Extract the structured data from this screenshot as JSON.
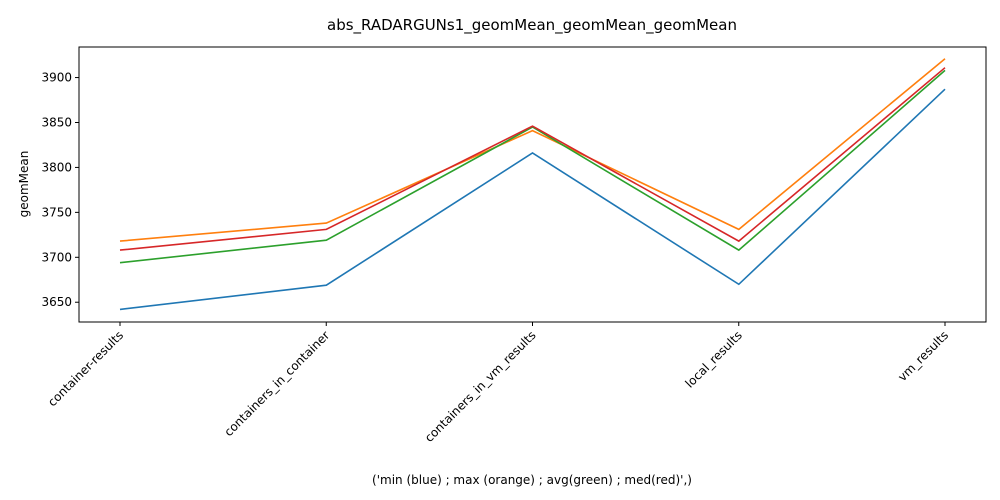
{
  "chart_data": {
    "type": "line",
    "title": "abs_RADARGUNs1_geomMean_geomMean_geomMean",
    "xlabel": "('min (blue) ; max (orange) ; avg(green) ; med(red)',)",
    "ylabel": "geomMean",
    "categories": [
      "container-results",
      "containers_in_container",
      "containers_in_vm_results",
      "local_results",
      "vm_results"
    ],
    "ylim": [
      3628,
      3934
    ],
    "yticks": [
      3650,
      3700,
      3750,
      3800,
      3850,
      3900
    ],
    "grid": false,
    "series": [
      {
        "color": "#1f77b4",
        "values": [
          3642,
          3669,
          3816,
          3670,
          3887
        ]
      },
      {
        "color": "#ff7f0e",
        "values": [
          3718,
          3738,
          3841,
          3731,
          3921
        ]
      },
      {
        "color": "#2ca02c",
        "values": [
          3694,
          3719,
          3845,
          3708,
          3908
        ]
      },
      {
        "color": "#d62728",
        "values": [
          3708,
          3731,
          3846,
          3718,
          3911
        ]
      }
    ]
  }
}
